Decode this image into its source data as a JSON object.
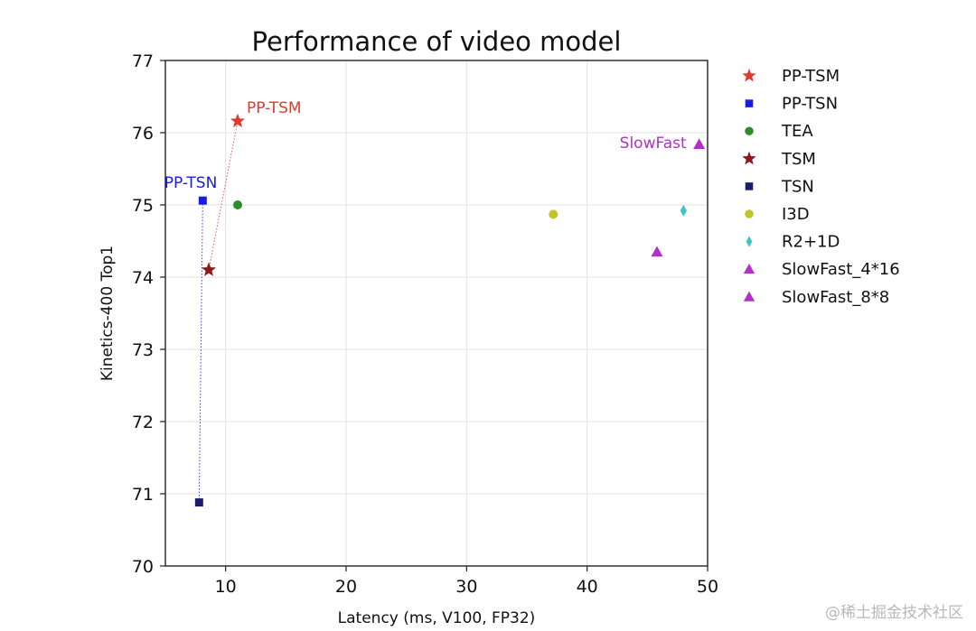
{
  "chart_data": {
    "type": "scatter",
    "title": "Performance of video model",
    "xlabel": "Latency (ms, V100, FP32)",
    "ylabel": "Kinetics-400 Top1",
    "xlim": [
      5,
      50
    ],
    "ylim": [
      70,
      77
    ],
    "xticks": [
      "10",
      "20",
      "30",
      "40",
      "50"
    ],
    "yticks": [
      "70",
      "71",
      "72",
      "73",
      "74",
      "75",
      "76",
      "77"
    ],
    "grid": true,
    "legend_position": "right-outside",
    "series": [
      {
        "name": "PP-TSM",
        "marker": "star",
        "color": "#e03a2e",
        "points": [
          {
            "x": 11.0,
            "y": 76.16
          }
        ]
      },
      {
        "name": "PP-TSN",
        "marker": "square",
        "color": "#1a1ae6",
        "points": [
          {
            "x": 8.1,
            "y": 75.06
          }
        ]
      },
      {
        "name": "TEA",
        "marker": "circle",
        "color": "#2e8b2e",
        "points": [
          {
            "x": 11.0,
            "y": 75.0
          }
        ]
      },
      {
        "name": "TSM",
        "marker": "star",
        "color": "#8b1a1a",
        "points": [
          {
            "x": 8.6,
            "y": 74.1
          }
        ]
      },
      {
        "name": "TSN",
        "marker": "square",
        "color": "#1c1c6e",
        "points": [
          {
            "x": 7.8,
            "y": 70.88
          }
        ]
      },
      {
        "name": "I3D",
        "marker": "circle",
        "color": "#c2c22a",
        "points": [
          {
            "x": 37.2,
            "y": 74.87
          }
        ]
      },
      {
        "name": "R2+1D",
        "marker": "thin-diamond",
        "color": "#3cc7c0",
        "points": [
          {
            "x": 48.0,
            "y": 74.92
          }
        ]
      },
      {
        "name": "SlowFast_4*16",
        "marker": "triangle",
        "color": "#b030c8",
        "points": [
          {
            "x": 45.8,
            "y": 74.35
          }
        ]
      },
      {
        "name": "SlowFast_8*8",
        "marker": "triangle",
        "color": "#b030c8",
        "points": [
          {
            "x": 49.3,
            "y": 75.84
          }
        ]
      }
    ],
    "connectors": [
      {
        "from": [
          8.6,
          74.1
        ],
        "to": [
          11.0,
          76.16
        ],
        "color": "#e03a2e"
      },
      {
        "from": [
          7.8,
          70.88
        ],
        "to": [
          8.1,
          75.06
        ],
        "color": "#1a1ae6"
      }
    ],
    "annotations": [
      {
        "text": "PP-TSM",
        "x": 11.0,
        "y": 76.16,
        "color": "#e03a2e",
        "anchor": "upper-right"
      },
      {
        "text": "PP-TSN",
        "x": 8.1,
        "y": 75.06,
        "color": "#1a1ae6",
        "anchor": "upper-left"
      },
      {
        "text": "SlowFast",
        "x": 49.3,
        "y": 75.84,
        "color": "#b030c8",
        "anchor": "left"
      }
    ]
  },
  "watermark": "@稀土掘金技术社区"
}
